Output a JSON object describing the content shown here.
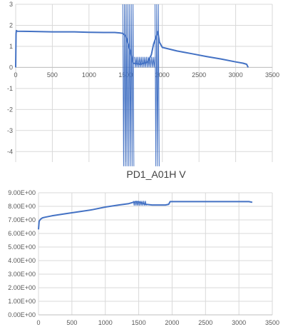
{
  "chart_data": [
    {
      "type": "line",
      "title": "",
      "xlim": [
        0,
        3500
      ],
      "ylim": [
        -4.5,
        3
      ],
      "x_ticks": [
        0,
        500,
        1000,
        1500,
        2000,
        2500,
        3000,
        3500
      ],
      "y_ticks": [
        3,
        2,
        1,
        0,
        -1,
        -2,
        -3,
        -4
      ],
      "x_tick_labels": [
        "0",
        "500",
        "1000",
        "1500",
        "2000",
        "2500",
        "3000",
        "3500"
      ],
      "y_tick_labels": [
        "3",
        "2",
        "1",
        "0",
        "-1",
        "-2",
        "-3",
        "-4"
      ],
      "grid": true,
      "legend": "none",
      "color": "#4472c4",
      "series": [
        {
          "x": [
            0,
            5,
            10,
            20,
            200,
            500,
            800,
            1000,
            1200,
            1350,
            1420,
            1460,
            1500,
            1560,
            1600,
            1700,
            1800,
            1850,
            1880,
            1920,
            1940,
            1960,
            2000,
            2200,
            2400,
            2600,
            2800,
            3000,
            3100,
            3150,
            3170
          ],
          "y": [
            0,
            1.6,
            1.75,
            1.72,
            1.71,
            1.69,
            1.69,
            1.67,
            1.66,
            1.66,
            1.64,
            1.62,
            1.5,
            0.8,
            0.2,
            0.15,
            0.25,
            0.6,
            1.1,
            1.5,
            1.7,
            1.2,
            0.95,
            0.78,
            0.65,
            0.52,
            0.4,
            0.26,
            0.2,
            0.15,
            0
          ]
        }
      ],
      "noise_bands": [
        {
          "x_start": 1460,
          "x_end": 1620,
          "y_low": -4.7,
          "y_high": 3
        },
        {
          "x_start": 1620,
          "x_end": 1900,
          "y_low": 0.0,
          "y_high": 0.5
        },
        {
          "x_start": 1900,
          "x_end": 1960,
          "y_low": -4.7,
          "y_high": 3
        }
      ]
    },
    {
      "type": "line",
      "title": "PD1_A01H V",
      "xlim": [
        0,
        3500
      ],
      "ylim": [
        0,
        9
      ],
      "x_ticks": [
        0,
        500,
        1000,
        1500,
        2000,
        2500,
        3000,
        3500
      ],
      "y_ticks": [
        9,
        8,
        7,
        6,
        5,
        4,
        3,
        2,
        1,
        0
      ],
      "x_tick_labels": [
        "0",
        "500",
        "1000",
        "1500",
        "2000",
        "2500",
        "3000",
        "3500"
      ],
      "y_tick_labels": [
        "9.00E+00",
        "8.00E+00",
        "7.00E+00",
        "6.00E+00",
        "5.00E+00",
        "4.00E+00",
        "3.00E+00",
        "2.00E+00",
        "1.00E+00",
        "0.00E+00"
      ],
      "grid": true,
      "legend": "none",
      "color": "#4472c4",
      "series": [
        {
          "x": [
            0,
            10,
            30,
            60,
            100,
            200,
            400,
            600,
            800,
            1000,
            1200,
            1350,
            1420,
            1470,
            1520,
            1600,
            1700,
            1800,
            1900,
            1950,
            1970,
            2000,
            2500,
            3000,
            3100,
            3150,
            3200
          ],
          "y": [
            6.3,
            6.9,
            7.05,
            7.15,
            7.2,
            7.3,
            7.45,
            7.6,
            7.75,
            7.95,
            8.1,
            8.2,
            8.3,
            8.35,
            8.3,
            8.15,
            8.1,
            8.1,
            8.1,
            8.15,
            8.35,
            8.35,
            8.35,
            8.35,
            8.35,
            8.35,
            8.3
          ]
        }
      ],
      "noise_bands": [
        {
          "x_start": 1420,
          "x_end": 1620,
          "y_low": 8.05,
          "y_high": 8.4
        }
      ]
    }
  ]
}
